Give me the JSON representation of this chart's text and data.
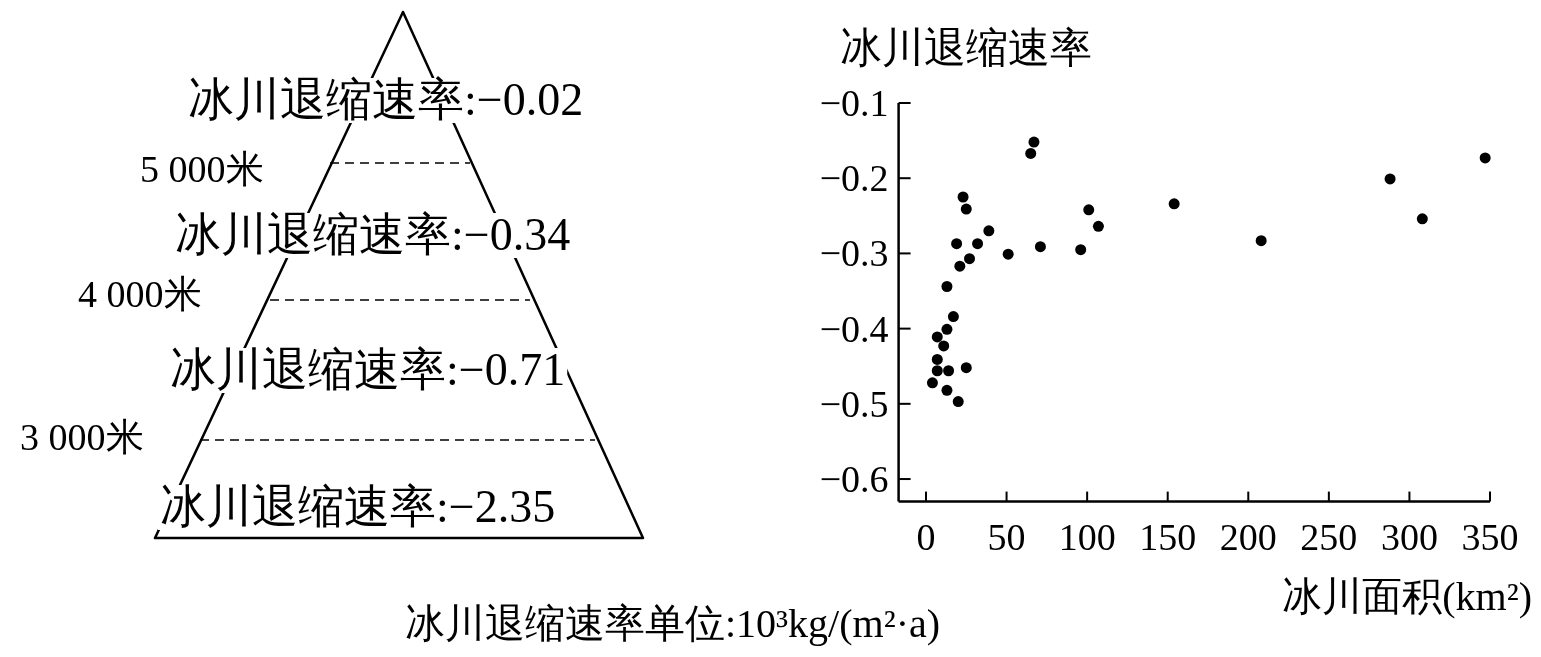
{
  "chart_data": [
    {
      "type": "other",
      "annotations": [
        "冰川退缩速率:−0.02",
        "冰川退缩速率:−0.34",
        "冰川退缩速率:−0.71",
        "冰川退缩速率:−2.35",
        "5 000米",
        "4 000米",
        "3 000米",
        "冰川退缩速率单位:10³kg/(m²·a)"
      ]
    },
    {
      "type": "scatter",
      "ylabel": "冰川退缩速率",
      "xlabel": "冰川面积(km²)",
      "color": "#000000",
      "marker": "circle",
      "grid": false,
      "x": [
        67,
        65,
        23,
        25,
        39,
        19,
        32,
        71,
        96,
        51,
        27,
        21,
        13,
        17,
        13,
        7,
        11,
        7,
        7,
        14,
        25,
        4,
        13,
        20,
        101,
        107,
        154,
        208,
        288,
        308,
        347
      ],
      "values": [
        -0.152,
        -0.167,
        -0.225,
        -0.241,
        -0.27,
        -0.287,
        -0.287,
        -0.291,
        -0.295,
        -0.301,
        -0.307,
        -0.317,
        -0.344,
        -0.384,
        -0.401,
        -0.411,
        -0.423,
        -0.441,
        -0.456,
        -0.456,
        -0.452,
        -0.472,
        -0.482,
        -0.497,
        -0.242,
        -0.264,
        -0.234,
        -0.283,
        -0.201,
        -0.254,
        -0.173
      ],
      "xlim": [
        -17,
        350
      ],
      "ylim": [
        -0.63,
        -0.1
      ],
      "xticks": [
        0,
        50,
        100,
        150,
        200,
        250,
        300,
        350
      ],
      "yticks": [
        -0.1,
        -0.2,
        -0.3,
        -0.4,
        -0.5,
        -0.6
      ]
    }
  ]
}
